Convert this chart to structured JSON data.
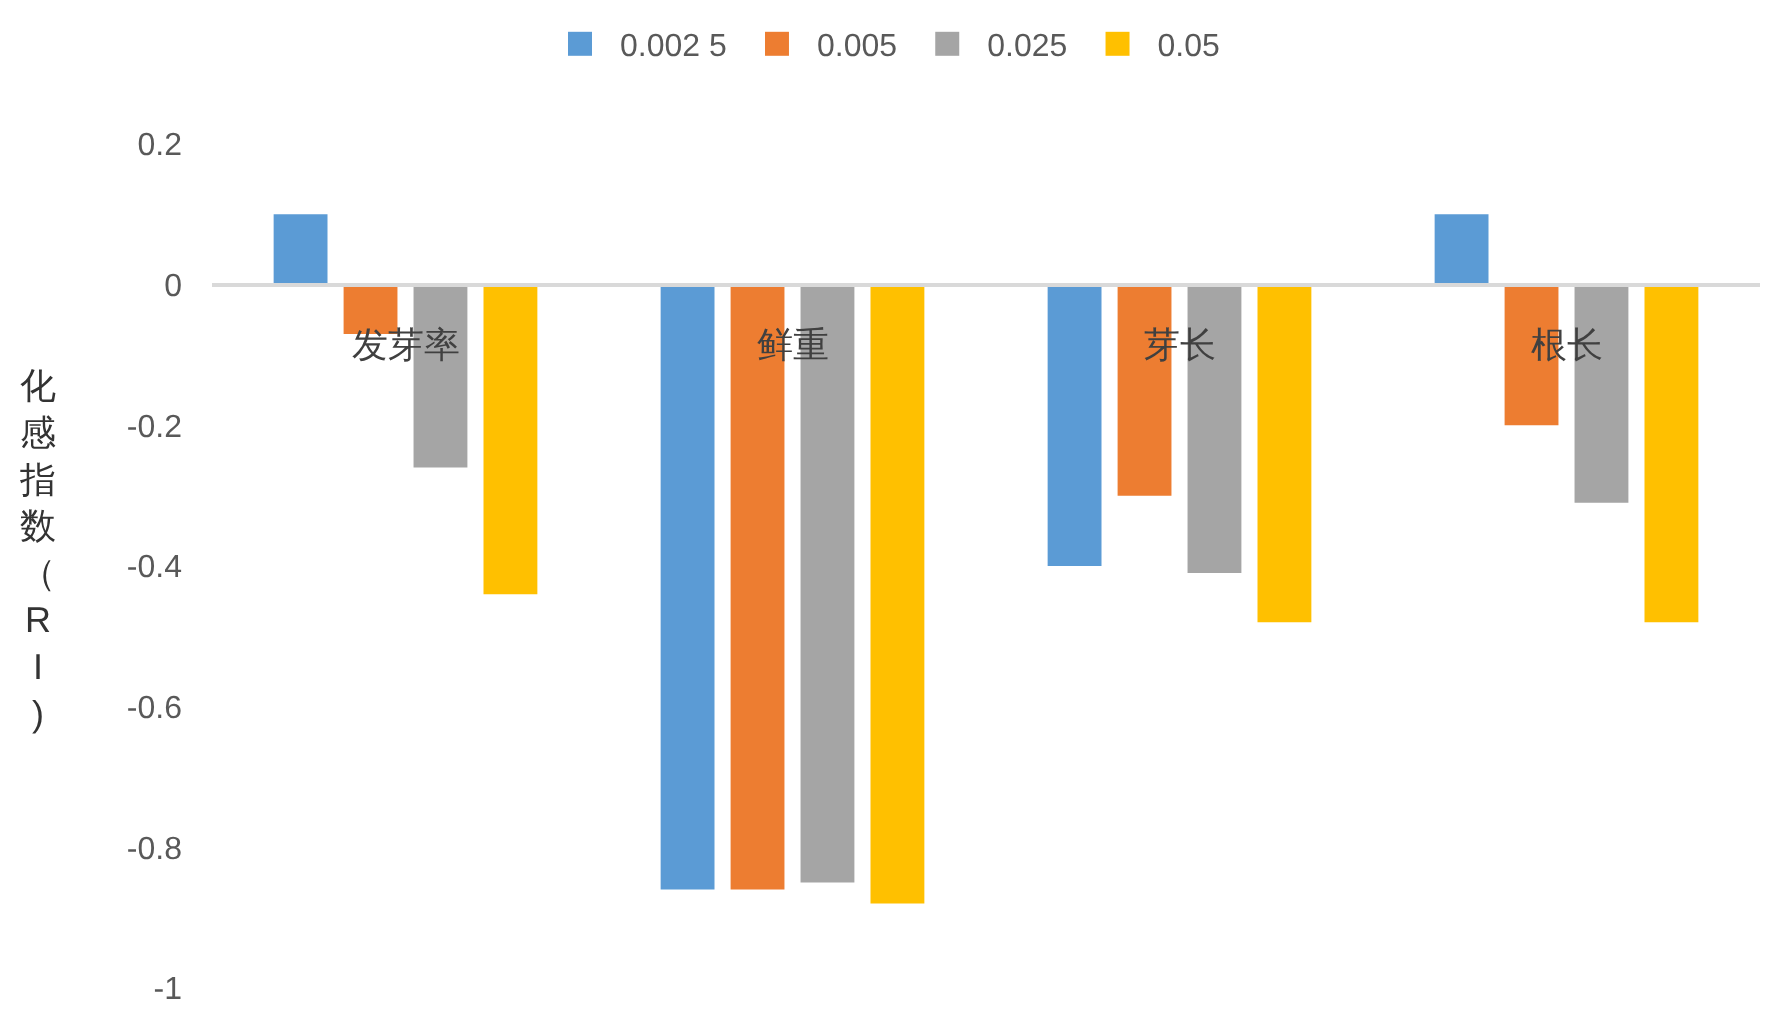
{
  "chart_data": {
    "type": "bar",
    "ylabel": "化感指数（RI)",
    "categories": [
      "发芽率",
      "鲜重",
      "芽长",
      "根长"
    ],
    "series": [
      {
        "name": "0.002 5",
        "color": "#5b9bd5",
        "values": [
          0.1,
          -0.86,
          -0.4,
          0.1
        ]
      },
      {
        "name": "0.005",
        "color": "#ed7d31",
        "values": [
          -0.07,
          -0.86,
          -0.3,
          -0.2
        ]
      },
      {
        "name": "0.025",
        "color": "#a5a5a5",
        "values": [
          -0.26,
          -0.85,
          -0.41,
          -0.31
        ]
      },
      {
        "name": "0.05",
        "color": "#ffc000",
        "values": [
          -0.44,
          -0.88,
          -0.48,
          -0.48
        ]
      }
    ],
    "ylim": [
      -1,
      0.2
    ],
    "yticks": [
      0.2,
      0,
      -0.2,
      -0.4,
      -0.6,
      -0.8,
      -1
    ],
    "legend": "top"
  }
}
